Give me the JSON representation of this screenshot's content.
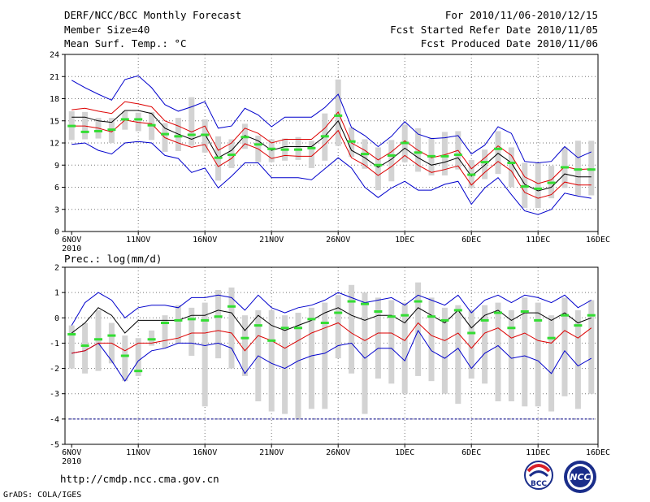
{
  "header": {
    "title": "DERF/NCC/BCC Monthly Forecast",
    "member_size": "Member Size=40",
    "variable": "Mean Surf. Temp.: °C",
    "period": "For 2010/11/06-2010/12/15",
    "started": "Fcst Started Refer Date 2010/11/05",
    "produced": "Fcst Produced Date 2010/11/06"
  },
  "footer": {
    "url": "http://cmdp.ncc.cma.gov.cn",
    "credit": "GrADS: COLA/IGES",
    "logo_left_text": "BCC",
    "logo_right_text": "NCC"
  },
  "colors": {
    "box": "#d3d3d3",
    "median": "#33dd33",
    "mean": "#000000",
    "inner_band": "#dd0000",
    "outer_band": "#0000cc",
    "grid": "#777777",
    "floor_line": "#000088"
  },
  "chart_data": [
    {
      "type": "line",
      "title": "Mean Surf. Temp.: °C",
      "x_tick_labels": [
        "6NOV",
        "11NOV",
        "16NOV",
        "21NOV",
        "26NOV",
        "1DEC",
        "6DEC",
        "11DEC",
        "16DEC"
      ],
      "x_year_label": "2010",
      "ylim": [
        0,
        24
      ],
      "y_ticks": [
        0,
        3,
        6,
        9,
        12,
        15,
        18,
        21,
        24
      ],
      "days": 40,
      "series": [
        {
          "name": "mean",
          "values": [
            15.5,
            15.5,
            15.0,
            14.8,
            16.4,
            16.4,
            16.0,
            14.0,
            13.2,
            12.5,
            13.2,
            10.0,
            11.0,
            13.0,
            12.3,
            11.0,
            11.5,
            11.5,
            11.5,
            12.9,
            15.0,
            11.0,
            10.0,
            8.7,
            9.8,
            11.3,
            10.0,
            9.0,
            9.4,
            10.0,
            7.5,
            9.0,
            10.6,
            9.3,
            6.4,
            5.5,
            6.0,
            7.8,
            7.4,
            7.4
          ]
        },
        {
          "name": "upper_inner",
          "values": [
            16.5,
            16.7,
            16.3,
            16.0,
            17.6,
            17.3,
            16.9,
            15.0,
            14.3,
            13.5,
            14.3,
            11.0,
            12.0,
            14.0,
            13.3,
            12.0,
            12.5,
            12.5,
            12.5,
            14.0,
            16.2,
            12.0,
            11.0,
            9.7,
            10.8,
            12.3,
            11.0,
            10.0,
            10.4,
            11.0,
            8.5,
            10.0,
            11.6,
            10.3,
            7.4,
            6.5,
            7.0,
            8.8,
            8.4,
            8.5
          ]
        },
        {
          "name": "lower_inner",
          "values": [
            14.3,
            14.3,
            14.0,
            13.5,
            15.1,
            14.8,
            14.6,
            12.7,
            12.0,
            11.4,
            11.8,
            8.8,
            9.9,
            11.9,
            11.2,
            9.9,
            10.3,
            10.2,
            10.2,
            11.8,
            13.7,
            10.0,
            9.0,
            7.6,
            8.8,
            10.3,
            9.0,
            8.0,
            8.4,
            8.9,
            6.3,
            8.0,
            9.5,
            8.2,
            5.3,
            4.5,
            5.0,
            6.7,
            6.3,
            6.3
          ]
        },
        {
          "name": "upper_outer",
          "values": [
            20.5,
            19.5,
            18.6,
            17.8,
            20.6,
            21.1,
            19.5,
            17.2,
            16.3,
            16.9,
            17.6,
            14.0,
            14.3,
            16.7,
            15.8,
            14.2,
            15.5,
            15.5,
            15.5,
            16.8,
            18.6,
            14.1,
            13.0,
            11.5,
            12.9,
            14.9,
            13.2,
            12.6,
            12.7,
            13.0,
            10.5,
            11.7,
            14.2,
            13.3,
            9.5,
            9.3,
            9.5,
            11.5,
            10.0,
            10.8
          ]
        },
        {
          "name": "lower_outer",
          "values": [
            11.8,
            12.0,
            11.0,
            10.5,
            12.0,
            12.2,
            12.0,
            10.3,
            9.9,
            8.0,
            8.6,
            5.9,
            7.5,
            9.3,
            9.3,
            7.3,
            7.3,
            7.3,
            7.0,
            8.5,
            10.0,
            8.6,
            6.0,
            4.6,
            5.9,
            6.8,
            5.6,
            5.6,
            6.4,
            6.8,
            3.7,
            5.9,
            7.3,
            5.0,
            2.8,
            2.3,
            3.0,
            5.2,
            4.8,
            4.5
          ]
        },
        {
          "name": "median",
          "values": [
            14.3,
            13.5,
            13.6,
            13.8,
            15.2,
            15.2,
            14.4,
            13.2,
            12.9,
            13.1,
            13.1,
            10.0,
            10.4,
            12.8,
            11.8,
            11.2,
            11.1,
            11.1,
            11.3,
            12.9,
            15.7,
            12.2,
            10.5,
            9.0,
            10.3,
            12.0,
            10.7,
            10.2,
            10.2,
            10.4,
            7.7,
            9.4,
            11.2,
            9.3,
            6.1,
            5.8,
            6.6,
            8.7,
            8.4,
            8.4
          ]
        },
        {
          "name": "box_top",
          "values": [
            16.3,
            16.2,
            15.4,
            15.4,
            16.3,
            16.1,
            16.2,
            14.7,
            15.4,
            18.2,
            15.2,
            12.9,
            12.5,
            14.6,
            13.0,
            12.5,
            12.6,
            12.8,
            12.3,
            16.0,
            20.6,
            14.1,
            12.5,
            11.4,
            12.4,
            14.5,
            14.0,
            12.7,
            13.5,
            13.6,
            9.7,
            11.1,
            13.6,
            11.4,
            9.3,
            9.3,
            8.9,
            11.4,
            12.3,
            12.3
          ]
        },
        {
          "name": "box_bottom",
          "values": [
            12.4,
            12.5,
            12.6,
            12.0,
            13.8,
            13.6,
            12.4,
            10.8,
            10.9,
            11.6,
            10.7,
            6.9,
            8.6,
            11.2,
            9.4,
            9.4,
            9.6,
            9.7,
            8.6,
            9.6,
            11.6,
            10.1,
            8.5,
            5.6,
            6.8,
            9.4,
            8.1,
            7.6,
            7.6,
            8.4,
            5.9,
            7.1,
            7.8,
            6.0,
            3.2,
            3.2,
            4.5,
            5.9,
            4.9,
            4.9
          ]
        }
      ]
    },
    {
      "type": "line",
      "title": "Prec.: log(mm/d)",
      "x_tick_labels": [
        "6NOV",
        "11NOV",
        "16NOV",
        "21NOV",
        "26NOV",
        "1DEC",
        "6DEC",
        "11DEC",
        "16DEC"
      ],
      "x_year_label": "2010",
      "ylim": [
        -5,
        2
      ],
      "y_ticks": [
        -5,
        -4,
        -3,
        -2,
        -1,
        0,
        1,
        2
      ],
      "floor_value": -4,
      "days": 40,
      "series": [
        {
          "name": "upper_outer",
          "values": [
            -0.3,
            0.6,
            1.0,
            0.7,
            0.0,
            0.4,
            0.5,
            0.5,
            0.4,
            0.8,
            0.8,
            0.9,
            0.8,
            0.3,
            0.9,
            0.4,
            0.2,
            0.4,
            0.5,
            0.7,
            1.0,
            0.8,
            0.6,
            0.7,
            0.8,
            0.5,
            0.9,
            0.7,
            0.5,
            0.9,
            0.2,
            0.7,
            0.9,
            0.6,
            0.9,
            0.8,
            0.6,
            0.9,
            0.4,
            0.7
          ]
        },
        {
          "name": "mean",
          "values": [
            -0.6,
            -0.2,
            0.4,
            0.1,
            -0.6,
            -0.1,
            -0.1,
            -0.1,
            -0.1,
            0.1,
            0.1,
            0.3,
            0.2,
            -0.5,
            0.1,
            -0.3,
            -0.5,
            -0.3,
            -0.1,
            0.2,
            0.4,
            0.1,
            -0.1,
            0.1,
            0.1,
            -0.2,
            0.4,
            0.1,
            -0.2,
            0.3,
            -0.4,
            0.1,
            0.3,
            -0.1,
            0.2,
            0.2,
            -0.1,
            0.2,
            -0.2,
            0.0
          ]
        },
        {
          "name": "lower_inner",
          "values": [
            -1.4,
            -1.3,
            -1.0,
            -1.0,
            -1.3,
            -1.0,
            -1.0,
            -0.9,
            -0.8,
            -0.6,
            -0.6,
            -0.5,
            -0.6,
            -1.3,
            -0.7,
            -0.9,
            -1.2,
            -0.9,
            -0.6,
            -0.4,
            -0.2,
            -0.6,
            -0.9,
            -0.6,
            -0.6,
            -0.9,
            -0.2,
            -0.7,
            -0.9,
            -0.6,
            -1.2,
            -0.6,
            -0.4,
            -0.8,
            -0.6,
            -0.9,
            -1.0,
            -0.5,
            -0.8,
            -0.4
          ]
        },
        {
          "name": "lower_outer",
          "values": [
            -1.4,
            -1.3,
            -1.0,
            -1.7,
            -2.5,
            -1.7,
            -1.3,
            -1.2,
            -1.0,
            -1.0,
            -1.1,
            -1.0,
            -1.2,
            -2.2,
            -1.5,
            -1.8,
            -2.0,
            -1.7,
            -1.5,
            -1.4,
            -1.1,
            -1.0,
            -1.6,
            -1.2,
            -1.2,
            -1.7,
            -0.5,
            -1.3,
            -1.6,
            -1.2,
            -2.0,
            -1.4,
            -1.1,
            -1.6,
            -1.5,
            -1.7,
            -2.2,
            -1.3,
            -1.9,
            -1.6
          ]
        },
        {
          "name": "median",
          "values": [
            -0.65,
            -1.1,
            -0.85,
            -0.7,
            -1.5,
            -2.1,
            -0.85,
            -0.2,
            -0.1,
            -0.05,
            -0.1,
            0.05,
            0.45,
            -0.8,
            -0.3,
            -0.9,
            -0.4,
            -0.4,
            -0.05,
            -0.2,
            0.2,
            0.65,
            0.55,
            0.25,
            0.05,
            0.1,
            0.65,
            0.05,
            -0.1,
            0.3,
            -0.6,
            -0.1,
            0.2,
            -0.4,
            0.25,
            -0.1,
            -0.8,
            0.1,
            -0.3,
            0.1
          ]
        },
        {
          "name": "box_top",
          "values": [
            -0.3,
            -0.2,
            0.3,
            -0.2,
            -0.7,
            -0.8,
            -0.5,
            0.1,
            0.5,
            0.4,
            0.6,
            1.1,
            1.2,
            0.1,
            0.3,
            0.3,
            0.1,
            0.2,
            0.4,
            0.6,
            0.9,
            1.3,
            1.0,
            0.8,
            0.7,
            0.6,
            1.4,
            0.8,
            0.4,
            0.5,
            0.3,
            0.5,
            0.6,
            0.3,
            0.8,
            0.6,
            0.1,
            0.8,
            0.3,
            0.7
          ]
        },
        {
          "name": "box_bottom",
          "values": [
            -2.0,
            -2.2,
            -2.1,
            -1.8,
            -2.5,
            -2.3,
            -1.1,
            -1.2,
            -1.0,
            -1.5,
            -3.5,
            -1.6,
            -2.0,
            -2.3,
            -3.3,
            -3.7,
            -3.8,
            -4.0,
            -3.6,
            -3.6,
            -1.6,
            -2.2,
            -3.8,
            -2.4,
            -2.6,
            -3.0,
            -2.3,
            -2.5,
            -3.0,
            -3.4,
            -2.4,
            -2.6,
            -3.3,
            -3.3,
            -3.5,
            -3.5,
            -3.7,
            -3.1,
            -3.6,
            -3.0
          ]
        }
      ]
    }
  ]
}
